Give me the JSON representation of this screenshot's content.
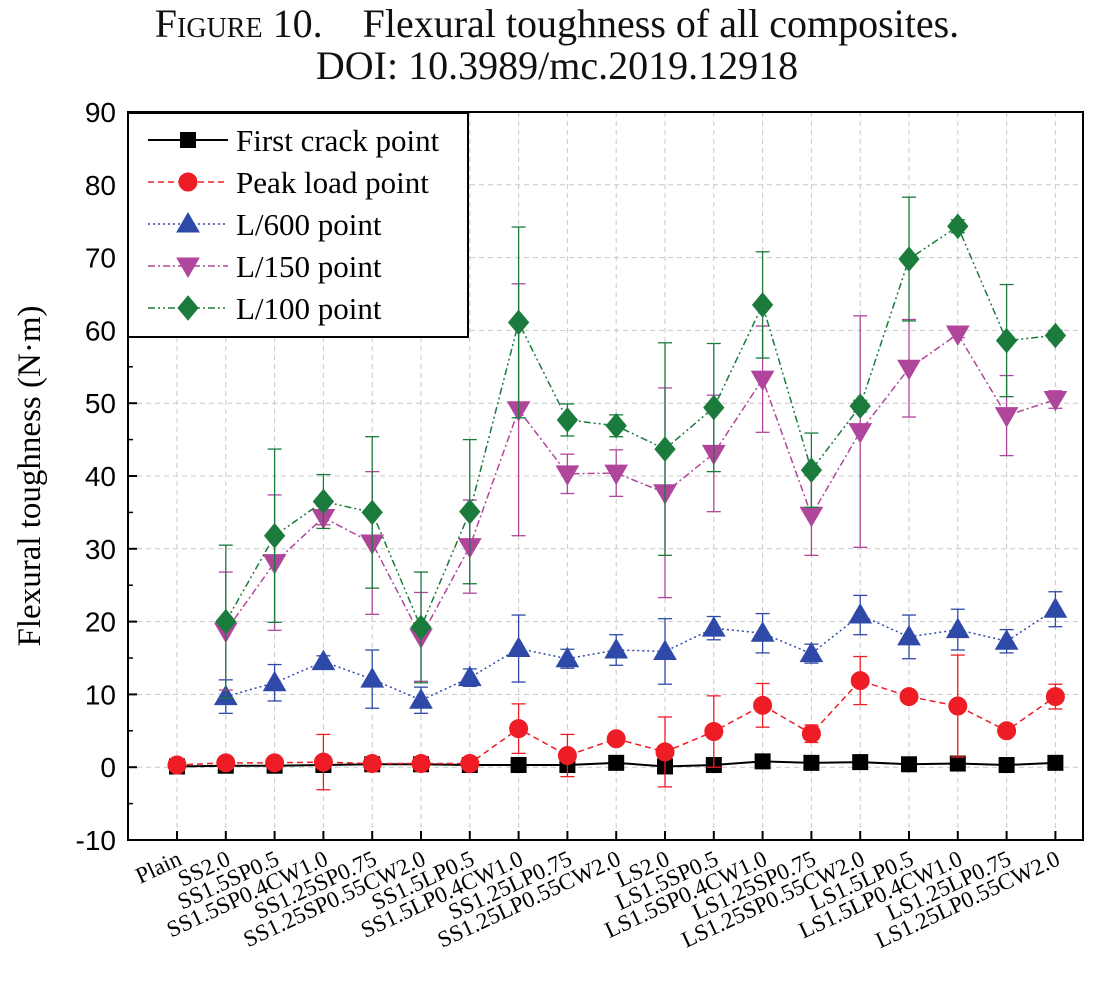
{
  "caption": {
    "figure_label": "Figure 10.",
    "title": "Flexural toughness of all composites.",
    "doi": "DOI: 10.3989/mc.2019.12918"
  },
  "chart_data": {
    "type": "line",
    "ylabel": "Flexural toughness (N·m)",
    "xlabel": "",
    "ylim": [
      -10,
      90
    ],
    "yticks": [
      -10,
      0,
      10,
      20,
      30,
      40,
      50,
      60,
      70,
      80,
      90
    ],
    "grid": true,
    "legend_position": "top-left",
    "categories": [
      "Plain",
      "SS2.0",
      "SS1.5SP0.5",
      "SS1.5SP0.4CW1.0",
      "SS1.25SP0.75",
      "SS1.25SP0.55CW2.0",
      "SS1.5LP0.5",
      "SS1.5LP0.4CW1.0",
      "SS1.25LP0.75",
      "SS1.25LP0.55CW2.0",
      "LS2.0",
      "LS1.5SP0.5",
      "LS1.5SP0.4CW1.0",
      "LS1.25SP0.75",
      "LS1.25SP0.55CW2.0",
      "LS1.5LP0.5",
      "LS1.5LP0.4CW1.0",
      "LS1.25LP0.75",
      "LS1.25LP0.55CW2.0"
    ],
    "series": [
      {
        "name": "First crack point",
        "color": "#000000",
        "marker": "square",
        "line": "solid",
        "values": [
          0.1,
          0.2,
          0.2,
          0.3,
          0.4,
          0.4,
          0.3,
          0.3,
          0.3,
          0.6,
          0.1,
          0.3,
          0.8,
          0.6,
          0.7,
          0.4,
          0.5,
          0.3,
          0.6
        ],
        "errors": [
          0,
          0,
          0,
          0,
          0,
          0,
          0,
          0,
          0,
          0,
          0,
          0,
          0,
          0,
          0,
          0,
          0,
          0,
          0
        ]
      },
      {
        "name": "Peak load point",
        "color": "#ee1c24",
        "marker": "circle",
        "line": "dashed",
        "values": [
          0.3,
          0.6,
          0.6,
          0.7,
          0.5,
          0.5,
          0.5,
          5.3,
          1.6,
          3.9,
          2.1,
          4.9,
          8.5,
          4.6,
          11.9,
          9.7,
          8.4,
          5.0,
          9.7
        ],
        "errors": [
          0,
          0.3,
          0.3,
          3.8,
          0.3,
          0.3,
          0.3,
          3.4,
          2.9,
          0.5,
          4.8,
          4.9,
          3.0,
          1.2,
          3.3,
          0.8,
          7.0,
          0.4,
          1.7
        ]
      },
      {
        "name": "L/600 point",
        "color": "#2e49a8",
        "marker": "triangle-up",
        "line": "dotted",
        "values": [
          null,
          9.7,
          11.6,
          14.5,
          12.1,
          9.2,
          12.3,
          16.3,
          14.9,
          16.1,
          15.9,
          19.1,
          18.4,
          15.6,
          20.9,
          17.9,
          18.9,
          17.3,
          21.7
        ],
        "errors": [
          0,
          2.3,
          2.5,
          0.8,
          4.0,
          1.8,
          1.2,
          4.6,
          1.3,
          2.1,
          4.5,
          1.6,
          2.7,
          1.3,
          2.7,
          3.0,
          2.8,
          1.6,
          2.4
        ]
      },
      {
        "name": "L/150 point",
        "color": "#b0469c",
        "marker": "triangle-down",
        "line": "dash-dot",
        "values": [
          null,
          18.7,
          28.1,
          34.3,
          30.8,
          17.9,
          30.3,
          49.1,
          40.3,
          40.4,
          37.7,
          43.1,
          53.3,
          34.6,
          46.1,
          54.8,
          59.5,
          48.3,
          50.5
        ],
        "errors": [
          0,
          8.1,
          9.3,
          1.0,
          9.8,
          6.1,
          6.4,
          17.3,
          2.7,
          3.2,
          14.4,
          8.0,
          7.3,
          5.5,
          15.9,
          6.7,
          0.5,
          5.5,
          1.2
        ]
      },
      {
        "name": "L/100 point",
        "color": "#1a7b3c",
        "marker": "diamond",
        "line": "dash-dot-dot",
        "values": [
          null,
          20.0,
          31.8,
          36.5,
          35.0,
          19.2,
          35.1,
          61.1,
          47.7,
          46.9,
          43.7,
          49.4,
          63.5,
          40.8,
          49.6,
          69.8,
          74.3,
          58.6,
          59.3
        ],
        "errors": [
          0,
          10.5,
          11.9,
          3.7,
          10.4,
          7.6,
          9.9,
          13.1,
          2.2,
          1.5,
          14.6,
          8.8,
          7.3,
          5.1,
          0.8,
          8.5,
          0.9,
          7.7,
          0.7
        ]
      }
    ]
  }
}
